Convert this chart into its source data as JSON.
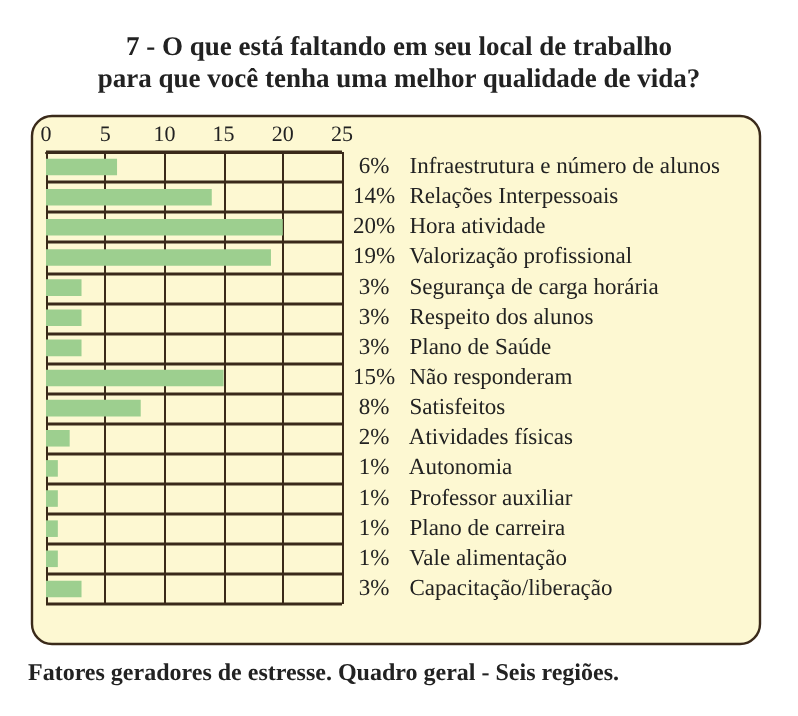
{
  "chart_data": {
    "type": "bar",
    "orientation": "horizontal",
    "title": "7 - O que está faltando em seu local de trabalho\npara que você tenha uma melhor qualidade de vida?",
    "categories": [
      "Infraestrutura e número de alunos",
      "Relações Interpessoais",
      "Hora atividade",
      "Valorização profissional",
      "Segurança de carga horária",
      "Respeito dos alunos",
      "Plano de Saúde",
      "Não responderam",
      "Satisfeitos",
      "Atividades físicas",
      "Autonomia",
      "Professor auxiliar",
      "Plano de carreira",
      "Vale alimentação",
      "Capacitação/liberação"
    ],
    "values": [
      6,
      14,
      20,
      19,
      3,
      3,
      3,
      15,
      8,
      2,
      1,
      1,
      1,
      1,
      3
    ],
    "value_labels": [
      "6%",
      "14%",
      "20%",
      "19%",
      "3%",
      "3%",
      "3%",
      "15%",
      "8%",
      "2%",
      "1%",
      "1%",
      "1%",
      "1%",
      "3%"
    ],
    "color": "#9dcf8f",
    "xlim": [
      0,
      25
    ],
    "xticks": [
      0,
      5,
      10,
      15,
      20,
      25
    ],
    "grid": true,
    "annotations": [
      "Fatores geradores de estresse. Quadro geral - Seis regiões."
    ]
  }
}
